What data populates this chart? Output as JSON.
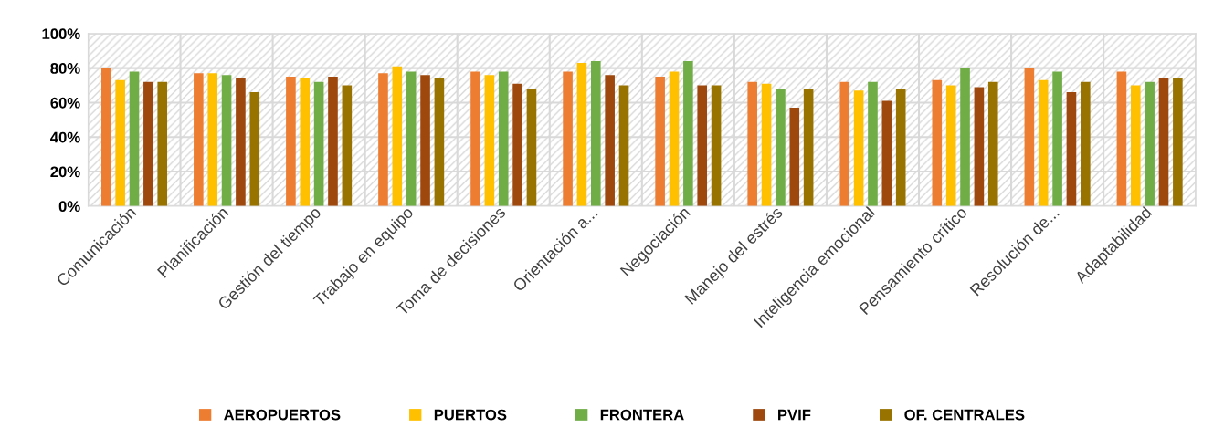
{
  "chart_data": {
    "type": "bar",
    "categories": [
      "Comunicación",
      "Planificación",
      "Gestión del tiempo",
      "Trabajo en equipo",
      "Toma de decisiones",
      "Orientación a...",
      "Negociación",
      "Manejo del estrés",
      "Inteligencia emocional",
      "Pensamiento crítico",
      "Resolución de...",
      "Adaptabilidad"
    ],
    "series": [
      {
        "name": "AEROPUERTOS",
        "color": "#ed7d31",
        "values": [
          80,
          77,
          75,
          77,
          78,
          78,
          75,
          72,
          72,
          73,
          80,
          78
        ]
      },
      {
        "name": "PUERTOS",
        "color": "#ffc000",
        "values": [
          73,
          77,
          74,
          81,
          76,
          83,
          78,
          71,
          67,
          70,
          73,
          70
        ]
      },
      {
        "name": "FRONTERA",
        "color": "#70ad47",
        "values": [
          78,
          76,
          72,
          78,
          78,
          84,
          84,
          68,
          72,
          80,
          78,
          72
        ]
      },
      {
        "name": "PVIF",
        "color": "#9e480e",
        "values": [
          72,
          74,
          75,
          76,
          71,
          76,
          70,
          57,
          61,
          69,
          66,
          74
        ]
      },
      {
        "name": "OF. CENTRALES",
        "color": "#997300",
        "values": [
          72,
          66,
          70,
          74,
          68,
          70,
          70,
          68,
          68,
          72,
          72,
          74
        ]
      }
    ],
    "ylim": [
      0,
      100
    ],
    "yticks": [
      {
        "value": 0,
        "label": "0%"
      },
      {
        "value": 20,
        "label": "20%"
      },
      {
        "value": 40,
        "label": "40%"
      },
      {
        "value": 60,
        "label": "60%"
      },
      {
        "value": 80,
        "label": "80%"
      },
      {
        "value": 100,
        "label": "100%"
      }
    ],
    "grid": true,
    "legend": "bottom"
  }
}
